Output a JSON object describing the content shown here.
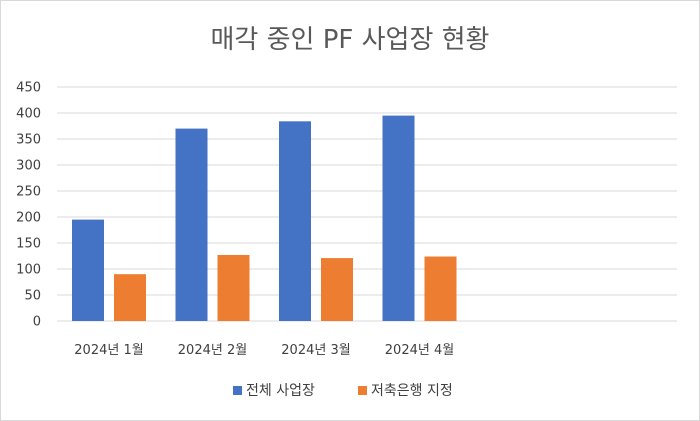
{
  "chart_data": {
    "type": "bar",
    "title": "매각 중인 PF 사업장 현황",
    "categories": [
      "2024년 1월",
      "2024년 2월",
      "2024년 3월",
      "2024년 4월"
    ],
    "series": [
      {
        "name": "전체 사업장",
        "values": [
          195,
          370,
          384,
          395
        ],
        "color": "#4472C4"
      },
      {
        "name": "저축은행 지정",
        "values": [
          90,
          127,
          121,
          124
        ],
        "color": "#ED7D31"
      }
    ],
    "yticks": [
      "0",
      "50",
      "100",
      "150",
      "200",
      "250",
      "300",
      "350",
      "400",
      "450"
    ],
    "ylim": [
      0,
      450
    ],
    "grid": true,
    "legend_position": "bottom"
  }
}
